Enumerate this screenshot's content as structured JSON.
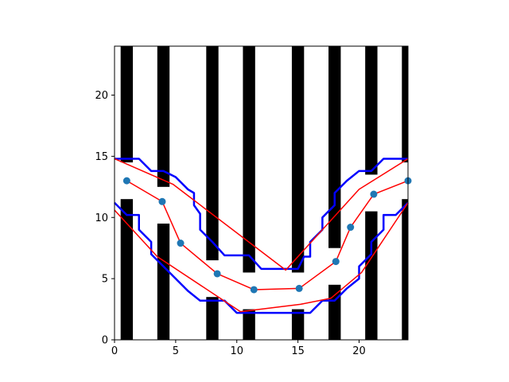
{
  "chart_data": {
    "type": "line",
    "title": "",
    "xlabel": "",
    "ylabel": "",
    "xlim": [
      0,
      24
    ],
    "ylim": [
      0,
      24
    ],
    "grid": false,
    "legend": "none",
    "x_ticks": [
      0,
      5,
      10,
      15,
      20
    ],
    "y_ticks": [
      0,
      5,
      10,
      15,
      20
    ],
    "obstacles": [
      {
        "x0": 0.5,
        "x1": 1.5,
        "y0": 0,
        "y1": 11.5
      },
      {
        "x0": 0.5,
        "x1": 1.5,
        "y0": 14.5,
        "y1": 24
      },
      {
        "x0": 3.5,
        "x1": 4.5,
        "y0": 0,
        "y1": 9.5
      },
      {
        "x0": 3.5,
        "x1": 4.5,
        "y0": 12.5,
        "y1": 24
      },
      {
        "x0": 7.5,
        "x1": 8.5,
        "y0": 0,
        "y1": 3.5
      },
      {
        "x0": 7.5,
        "x1": 8.5,
        "y0": 6.5,
        "y1": 24
      },
      {
        "x0": 10.5,
        "x1": 11.5,
        "y0": 0,
        "y1": 2.5
      },
      {
        "x0": 10.5,
        "x1": 11.5,
        "y0": 5.5,
        "y1": 24
      },
      {
        "x0": 14.5,
        "x1": 15.5,
        "y0": 0,
        "y1": 2.5
      },
      {
        "x0": 14.5,
        "x1": 15.5,
        "y0": 5.5,
        "y1": 24
      },
      {
        "x0": 17.5,
        "x1": 18.5,
        "y0": 0,
        "y1": 4.5
      },
      {
        "x0": 17.5,
        "x1": 18.5,
        "y0": 7.5,
        "y1": 24
      },
      {
        "x0": 20.5,
        "x1": 21.5,
        "y0": 0,
        "y1": 10.5
      },
      {
        "x0": 20.5,
        "x1": 21.5,
        "y0": 13.5,
        "y1": 24
      },
      {
        "x0": 23.5,
        "x1": 24,
        "y0": 0,
        "y1": 11.5
      },
      {
        "x0": 23.5,
        "x1": 24,
        "y0": 14.5,
        "y1": 24
      }
    ],
    "series": [
      {
        "style": "blue-boundary",
        "color": "#0000ff",
        "x": [
          0,
          2,
          3,
          4,
          5,
          6,
          6.5,
          6.5,
          7,
          7,
          8,
          9,
          11,
          12,
          14,
          15,
          15.5,
          16,
          16,
          17,
          17,
          17.5,
          18,
          18,
          19,
          20,
          21,
          22,
          24
        ],
        "y": [
          14.8,
          14.8,
          13.8,
          13.8,
          13.3,
          12.3,
          12.0,
          11.0,
          10.3,
          9.0,
          8.0,
          6.9,
          6.9,
          5.8,
          5.8,
          5.8,
          6.8,
          6.8,
          8.0,
          9.0,
          10.0,
          10.5,
          11.0,
          12.0,
          13.0,
          13.8,
          13.8,
          14.8,
          14.8
        ]
      },
      {
        "style": "blue-boundary",
        "color": "#0000ff",
        "x": [
          0,
          1,
          2,
          2,
          3,
          3,
          4,
          5,
          6,
          7,
          8,
          9,
          10,
          11,
          12,
          15,
          16,
          17,
          18,
          19,
          20,
          20,
          21,
          21,
          22,
          22,
          23,
          24
        ],
        "y": [
          11.2,
          10.2,
          10.2,
          9.0,
          8.0,
          7.0,
          6.0,
          5.0,
          4.0,
          3.2,
          3.2,
          3.2,
          2.2,
          2.2,
          2.2,
          2.2,
          2.2,
          3.2,
          3.2,
          4.2,
          5.0,
          6.0,
          7.0,
          8.0,
          9.0,
          10.2,
          10.2,
          11.2
        ]
      },
      {
        "style": "red-line",
        "color": "#ff0000",
        "x": [
          0,
          4.8,
          14,
          20,
          24
        ],
        "y": [
          14.8,
          12.7,
          5.7,
          12.3,
          14.8
        ]
      },
      {
        "style": "red-line",
        "color": "#ff0000",
        "x": [
          0,
          3.5,
          10.3,
          15.2,
          17.7,
          20.2,
          24
        ],
        "y": [
          10.6,
          6.8,
          2.3,
          2.9,
          3.4,
          5.5,
          11.2
        ]
      },
      {
        "style": "red-line-markers",
        "color": "#ff0000",
        "marker_color": "#1f77b4",
        "x": [
          1,
          3.9,
          5.4,
          8.4,
          11.4,
          15.1,
          18.1,
          19.3,
          21.2,
          24
        ],
        "y": [
          13.0,
          11.3,
          7.9,
          5.4,
          4.1,
          4.2,
          6.4,
          9.2,
          11.9,
          13.0
        ]
      }
    ]
  }
}
